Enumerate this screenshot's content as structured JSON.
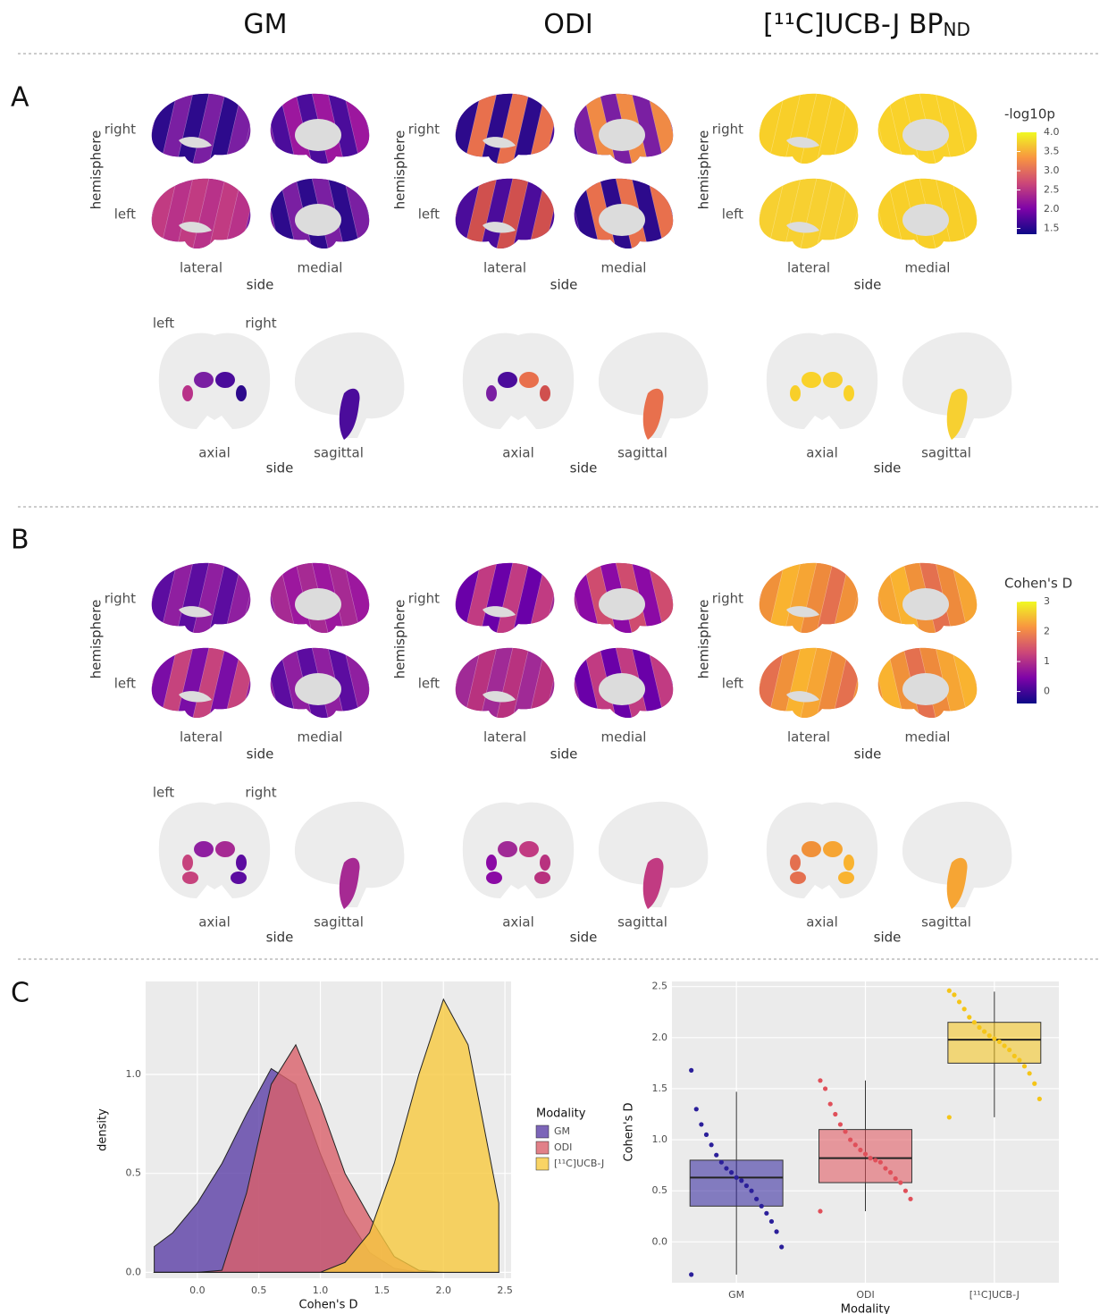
{
  "header": {
    "columns": [
      {
        "text": "GM"
      },
      {
        "text": "ODI"
      },
      {
        "text": "[¹¹C]UCB-J BP",
        "subscript": "ND"
      }
    ]
  },
  "panels": [
    {
      "label": "A",
      "colorbar": {
        "title": "-log10p",
        "lim": [
          1.35,
          4.0
        ],
        "ticks": [
          1.5,
          {
            "value": 2.0,
            "label": "2.0"
          },
          2.5,
          {
            "value": 3.0,
            "label": "3.0"
          },
          3.5,
          {
            "value": 4.0,
            "label": "4.0"
          }
        ]
      },
      "columns": [
        {
          "cortical": {
            "row_labels": [
              "right",
              "left"
            ],
            "y_label": "hemisphere",
            "view_labels": [
              "lateral",
              "medial"
            ],
            "x_label": "side"
          },
          "subcortical": {
            "lr_labels": [
              "left",
              "right"
            ],
            "view_labels": [
              "axial",
              "sagittal"
            ],
            "x_label": "side"
          }
        },
        {
          "cortical": {
            "row_labels": [
              "right",
              "left"
            ],
            "y_label": "hemisphere",
            "view_labels": [
              "lateral",
              "medial"
            ],
            "x_label": "side"
          },
          "subcortical": {
            "view_labels": [
              "axial",
              "sagittal"
            ],
            "x_label": "side"
          }
        },
        {
          "cortical": {
            "row_labels": [
              "right",
              "left"
            ],
            "y_label": "hemisphere",
            "view_labels": [
              "lateral",
              "medial"
            ],
            "x_label": "side"
          },
          "subcortical": {
            "view_labels": [
              "axial",
              "sagittal"
            ],
            "x_label": "side"
          }
        }
      ]
    },
    {
      "label": "B",
      "colorbar": {
        "title": "Cohen's D",
        "lim": [
          -0.4,
          3
        ],
        "ticks": [
          0,
          1,
          2,
          3
        ]
      },
      "columns": [
        {
          "cortical": {
            "row_labels": [
              "right",
              "left"
            ],
            "y_label": "hemisphere",
            "view_labels": [
              "lateral",
              "medial"
            ],
            "x_label": "side"
          },
          "subcortical": {
            "lr_labels": [
              "left",
              "right"
            ],
            "view_labels": [
              "axial",
              "sagittal"
            ],
            "x_label": "side"
          }
        },
        {
          "cortical": {
            "row_labels": [
              "right",
              "left"
            ],
            "y_label": "hemisphere",
            "view_labels": [
              "lateral",
              "medial"
            ],
            "x_label": "side"
          },
          "subcortical": {
            "view_labels": [
              "axial",
              "sagittal"
            ],
            "x_label": "side"
          }
        },
        {
          "cortical": {
            "row_labels": [
              "right",
              "left"
            ],
            "y_label": "hemisphere",
            "view_labels": [
              "lateral",
              "medial"
            ],
            "x_label": "side"
          },
          "subcortical": {
            "view_labels": [
              "axial",
              "sagittal"
            ],
            "x_label": "side"
          }
        }
      ]
    }
  ],
  "panel_c": {
    "label": "C"
  },
  "chart_data": [
    {
      "type": "density",
      "x_label": "Cohen's D",
      "y_label": "density",
      "legend_title": "Modality",
      "grid": true,
      "xlim": [
        -0.42,
        2.55
      ],
      "xticks": [
        {
          "value": 0,
          "label": "0.0"
        },
        0.5,
        {
          "value": 1,
          "label": "1.0"
        },
        1.5,
        {
          "value": 2,
          "label": "2.0"
        },
        2.5
      ],
      "ylim": [
        -0.03,
        1.47
      ],
      "yticks": [
        {
          "value": 0,
          "label": "0.0"
        },
        0.5,
        {
          "value": 1,
          "label": "1.0"
        }
      ],
      "x": [
        -0.35,
        -0.2,
        0,
        0.2,
        0.4,
        0.6,
        0.8,
        1.0,
        1.2,
        1.4,
        1.6,
        1.8,
        2.0,
        2.2,
        2.45
      ],
      "series": [
        {
          "name": "GM",
          "color": "#5b3ea6",
          "values": [
            0.13,
            0.2,
            0.35,
            0.55,
            0.8,
            1.03,
            0.95,
            0.6,
            0.3,
            0.1,
            0.02,
            0,
            0,
            0,
            0
          ]
        },
        {
          "name": "ODI",
          "color": "#d9606a",
          "values": [
            0,
            0,
            0,
            0.01,
            0.4,
            0.95,
            1.15,
            0.85,
            0.5,
            0.28,
            0.08,
            0.01,
            0,
            0,
            0
          ]
        },
        {
          "name": "[¹¹C]UCB-J",
          "color": "#f7c93e",
          "values": [
            0,
            0,
            0,
            0,
            0,
            0,
            0,
            0,
            0.05,
            0.2,
            0.55,
            1.0,
            1.38,
            1.15,
            0.35
          ]
        }
      ]
    },
    {
      "type": "box",
      "x_label": "Modality",
      "y_label": "Cohen's D",
      "grid": true,
      "categories": [
        "GM",
        "ODI",
        "[¹¹C]UCB-J"
      ],
      "ylim": [
        -0.4,
        2.55
      ],
      "yticks": [
        {
          "value": 0,
          "label": "0.0"
        },
        0.5,
        {
          "value": 1,
          "label": "1.0"
        },
        1.5,
        {
          "value": 2,
          "label": "2.0"
        },
        2.5
      ],
      "boxes": [
        {
          "color": "#2b1f9a",
          "whisker_low": -0.32,
          "q1": 0.35,
          "median": 0.63,
          "q3": 0.8,
          "whisker_high": 1.47,
          "points": [
            -0.32,
            -0.05,
            0.1,
            0.2,
            0.28,
            0.35,
            0.42,
            0.5,
            0.55,
            0.6,
            0.63,
            0.68,
            0.72,
            0.78,
            0.85,
            0.95,
            1.05,
            1.15,
            1.3,
            1.68
          ]
        },
        {
          "color": "#e0505a",
          "whisker_low": 0.3,
          "q1": 0.58,
          "median": 0.82,
          "q3": 1.1,
          "whisker_high": 1.58,
          "points": [
            0.3,
            0.42,
            0.5,
            0.58,
            0.62,
            0.68,
            0.72,
            0.78,
            0.8,
            0.82,
            0.86,
            0.9,
            0.95,
            1.0,
            1.08,
            1.15,
            1.25,
            1.35,
            1.5,
            1.58
          ]
        },
        {
          "color": "#f5c518",
          "whisker_low": 1.22,
          "q1": 1.75,
          "median": 1.98,
          "q3": 2.15,
          "whisker_high": 2.45,
          "points": [
            1.22,
            1.4,
            1.55,
            1.65,
            1.72,
            1.78,
            1.82,
            1.88,
            1.92,
            1.96,
            1.99,
            2.02,
            2.06,
            2.1,
            2.15,
            2.2,
            2.28,
            2.35,
            2.42,
            2.46
          ]
        }
      ]
    }
  ]
}
